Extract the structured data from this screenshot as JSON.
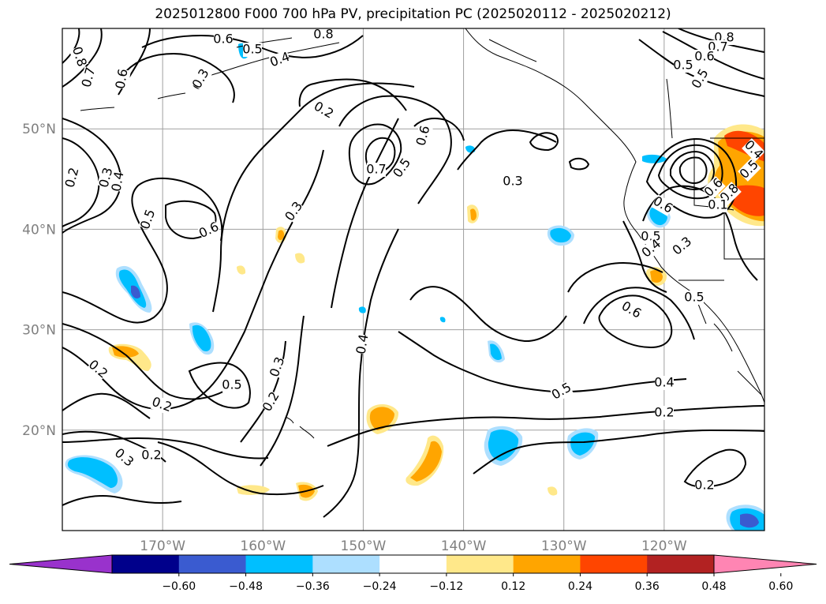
{
  "title": "2025012800 F000 700 hPa PV, precipitation PC (2025020112 - 2025020212)",
  "map": {
    "lat_labels": [
      "50°N",
      "40°N",
      "30°N",
      "20°N"
    ],
    "lon_labels": [
      "170°W",
      "160°W",
      "150°W",
      "140°W",
      "130°W",
      "120°W"
    ],
    "lat_values": [
      50,
      40,
      30,
      20
    ],
    "lon_values": [
      -170,
      -160,
      -150,
      -140,
      -130,
      -120
    ],
    "extent": {
      "lon_min": -180,
      "lon_max": -110,
      "lat_min": 10,
      "lat_max": 60
    },
    "contour_labels": [
      "0.8",
      "0.8",
      "0.7",
      "0.6",
      "0.6",
      "0.5",
      "0.4",
      "0.3",
      "0.2",
      "0.2",
      "0.3",
      "0.4",
      "0.5",
      "0.6",
      "0.3",
      "0.7",
      "0.5",
      "0.6",
      "0.3",
      "0.6",
      "0.5",
      "0.6",
      "0.4",
      "0.3",
      "0.5",
      "0.6",
      "0.4",
      "0.5",
      "0.4",
      "0.2",
      "0.2",
      "0.2",
      "0.3",
      "0.2",
      "0.5",
      "0.3",
      "0.2",
      "0.3",
      "0.5",
      "0.8",
      "0.7",
      "0.6",
      "0.5",
      "0.4",
      "0.5",
      "0.8",
      "0.1",
      "0.2"
    ]
  },
  "colorbar": {
    "ticks": [
      "−0.60",
      "−0.48",
      "−0.36",
      "−0.24",
      "−0.12",
      "0.12",
      "0.24",
      "0.36",
      "0.48",
      "0.60"
    ],
    "colors": [
      "#9932cc",
      "#00008b",
      "#3a5bd0",
      "#00bfff",
      "#addfff",
      "#ffffff",
      "#ffe88a",
      "#ffa500",
      "#ff4500",
      "#b22222",
      "#ff85b3"
    ]
  }
}
